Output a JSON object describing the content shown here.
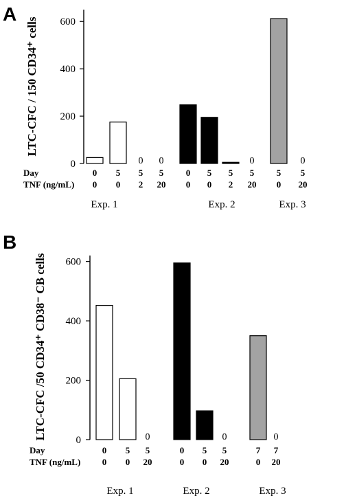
{
  "chart_data": [
    {
      "panel": "A",
      "type": "bar",
      "ylabel": "LTC-CFC / 150 CD34⁺ cells",
      "ylim": [
        0,
        650
      ],
      "yticks": [
        0,
        200,
        400,
        600
      ],
      "row_labels": [
        "Day",
        "TNF (ng/mL)"
      ],
      "groups": [
        {
          "label": "Exp. 1",
          "fill": "#ffffff",
          "bars": [
            {
              "day": "0",
              "tnf": "0",
              "value": 25
            },
            {
              "day": "5",
              "tnf": "0",
              "value": 175
            },
            {
              "day": "5",
              "tnf": "2",
              "value": 0,
              "zero_label": "0"
            },
            {
              "day": "5",
              "tnf": "20",
              "value": 0,
              "zero_label": "0"
            }
          ]
        },
        {
          "label": "Exp. 2",
          "fill": "#000000",
          "bars": [
            {
              "day": "0",
              "tnf": "0",
              "value": 248
            },
            {
              "day": "5",
              "tnf": "0",
              "value": 195
            },
            {
              "day": "5",
              "tnf": "2",
              "value": 5
            },
            {
              "day": "5",
              "tnf": "20",
              "value": 0,
              "zero_label": "0"
            }
          ]
        },
        {
          "label": "Exp. 3",
          "fill": "#a3a3a3",
          "bars": [
            {
              "day": "5",
              "tnf": "0",
              "value": 612
            },
            {
              "day": "5",
              "tnf": "20",
              "value": 0,
              "zero_label": "0"
            }
          ]
        }
      ]
    },
    {
      "panel": "B",
      "type": "bar",
      "ylabel": "LTC-CFC /50 CD34⁺ CD38⁻ CB cells",
      "ylim": [
        0,
        620
      ],
      "yticks": [
        0,
        200,
        400,
        600
      ],
      "row_labels": [
        "Day",
        "TNF (ng/mL)"
      ],
      "groups": [
        {
          "label": "Exp. 1",
          "fill": "#ffffff",
          "bars": [
            {
              "day": "0",
              "tnf": "0",
              "value": 452
            },
            {
              "day": "5",
              "tnf": "0",
              "value": 205
            },
            {
              "day": "5",
              "tnf": "20",
              "value": 0,
              "zero_label": "0"
            }
          ]
        },
        {
          "label": "Exp. 2",
          "fill": "#000000",
          "bars": [
            {
              "day": "0",
              "tnf": "0",
              "value": 595
            },
            {
              "day": "5",
              "tnf": "0",
              "value": 97
            },
            {
              "day": "5",
              "tnf": "20",
              "value": 0,
              "zero_label": "0"
            }
          ]
        },
        {
          "label": "Exp. 3",
          "fill": "#a3a3a3",
          "bars": [
            {
              "day": "7",
              "tnf": "0",
              "value": 350
            },
            {
              "day": "7",
              "tnf": "20",
              "value": 0,
              "zero_label": "0"
            }
          ]
        }
      ]
    }
  ]
}
